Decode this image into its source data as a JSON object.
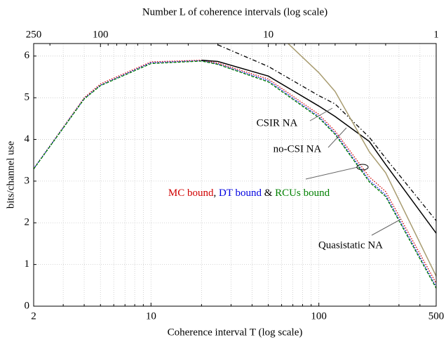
{
  "chart_data": {
    "type": "line",
    "xlabel": "Coherence interval T (log scale)",
    "x2label": "Number L of coherence intervals (log scale)",
    "ylabel": "bits/channel use",
    "xscale": "log",
    "x2scale": "log",
    "x": [
      2,
      4,
      5,
      10,
      20,
      25,
      50,
      100,
      125,
      200,
      250,
      500
    ],
    "xlim": [
      2,
      500
    ],
    "xticks": [
      2,
      10,
      100,
      500
    ],
    "xminor_ticks": [
      3,
      4,
      5,
      6,
      7,
      8,
      9,
      20,
      30,
      40,
      50,
      60,
      70,
      80,
      90,
      200,
      300,
      400
    ],
    "x2lim": [
      250,
      1
    ],
    "x2ticks": [
      250,
      100,
      10,
      1
    ],
    "x2minor_ticks": [
      200,
      90,
      80,
      70,
      60,
      50,
      40,
      30,
      20,
      9,
      8,
      7,
      6,
      5,
      4,
      3,
      2
    ],
    "ylim": [
      0,
      6.3
    ],
    "yticks": [
      0,
      1,
      2,
      3,
      4,
      5,
      6
    ],
    "grid": true,
    "series": [
      {
        "name": "MC bound",
        "color": "#d00000",
        "dash": "dotted",
        "values": [
          3.3,
          5.0,
          5.33,
          5.86,
          5.9,
          5.83,
          5.45,
          4.6,
          4.2,
          3.1,
          2.75,
          0.55
        ]
      },
      {
        "name": "DT bound",
        "color": "#0000e0",
        "dash": "dotted",
        "values": [
          3.3,
          4.98,
          5.3,
          5.84,
          5.89,
          5.81,
          5.41,
          4.55,
          4.15,
          3.02,
          2.67,
          0.47
        ]
      },
      {
        "name": "RCUs bound",
        "color": "#008000",
        "dash": "dashed",
        "values": [
          3.29,
          4.97,
          5.29,
          5.82,
          5.88,
          5.8,
          5.38,
          4.52,
          4.12,
          2.98,
          2.63,
          0.43
        ]
      },
      {
        "name": "CSIR NA",
        "color": "#000000",
        "dash": "solid",
        "values": [
          null,
          null,
          null,
          null,
          5.9,
          5.87,
          5.52,
          4.8,
          4.55,
          3.95,
          3.4,
          1.75
        ]
      },
      {
        "name": "no-CSI NA",
        "color": "#000000",
        "dash": "dashdot",
        "values": [
          null,
          null,
          null,
          null,
          null,
          6.27,
          5.75,
          5.05,
          4.85,
          4.05,
          3.55,
          2.05
        ]
      },
      {
        "name": "Quasistatic NA",
        "color": "#a89c70",
        "dash": "solid",
        "values": [
          null,
          null,
          null,
          null,
          null,
          null,
          6.75,
          5.6,
          5.15,
          3.7,
          3.2,
          0.72
        ]
      }
    ],
    "annotations": [
      {
        "text": "CSIR NA",
        "color": "#000000"
      },
      {
        "text": "no-CSI NA",
        "color": "#000000"
      },
      {
        "text": "MC bound",
        "color": "#d00000"
      },
      {
        "text": ", ",
        "color": "#000000"
      },
      {
        "text": "DT bound",
        "color": "#0000e0"
      },
      {
        "text": " & ",
        "color": "#000000"
      },
      {
        "text": "RCUs bound",
        "color": "#008000"
      },
      {
        "text": "Quasistatic NA",
        "color": "#a89c70"
      }
    ]
  }
}
